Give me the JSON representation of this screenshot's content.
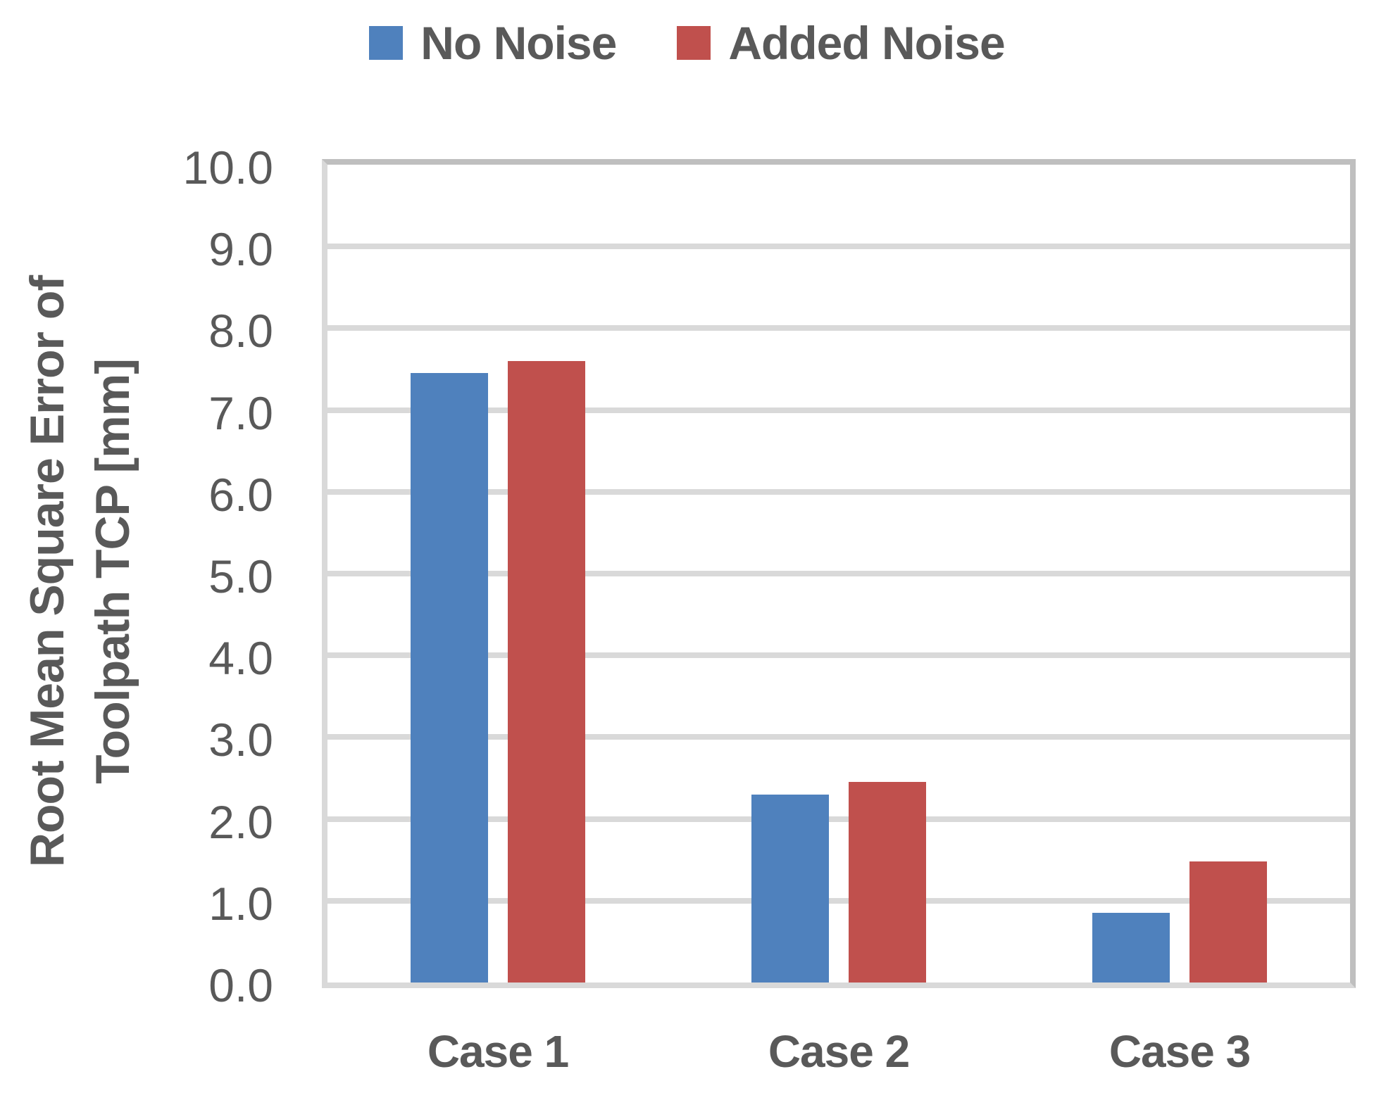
{
  "chart_data": {
    "type": "bar",
    "title": "",
    "categories": [
      "Case 1",
      "Case 2",
      "Case 3"
    ],
    "series": [
      {
        "name": "No Noise",
        "color": "#4F81BD",
        "values": [
          7.45,
          2.3,
          0.85
        ]
      },
      {
        "name": "Added Noise",
        "color": "#C0504D",
        "values": [
          7.6,
          2.45,
          1.48
        ]
      }
    ],
    "xlabel": "",
    "ylabel": "Root Mean Square Error of Toolpath TCP [mm]",
    "ylabel_lines": [
      "Root Mean Square Error of",
      "Toolpath TCP [mm]"
    ],
    "ylim": [
      0,
      10
    ],
    "ytick_step": 1.0,
    "ytick_labels": [
      "0.0",
      "1.0",
      "2.0",
      "3.0",
      "4.0",
      "5.0",
      "6.0",
      "7.0",
      "8.0",
      "9.0",
      "10.0"
    ],
    "grid": "horizontal",
    "legend_position": "top"
  },
  "colors": {
    "text": "#595959",
    "gridline": "#D9D9D9",
    "plot_border": "#BFBFBF",
    "background": "#FFFFFF"
  }
}
